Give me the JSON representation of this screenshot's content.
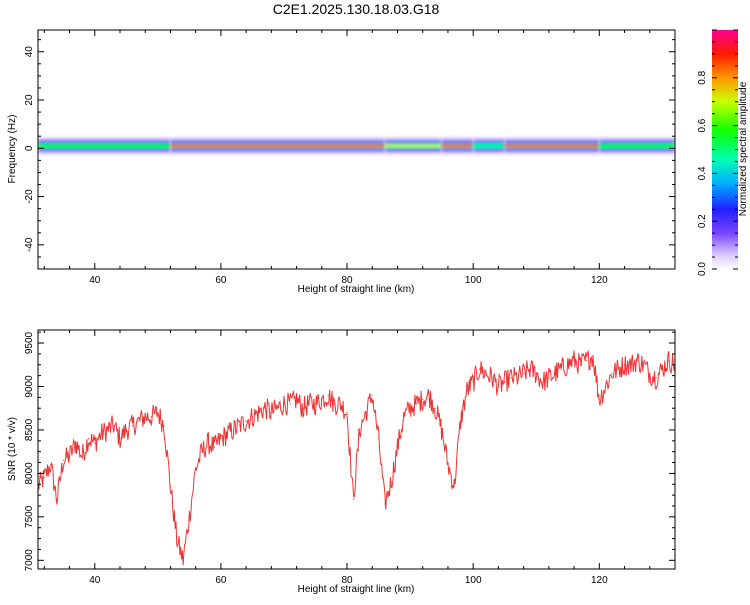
{
  "title": "C2E1.2025.130.18.03.G18",
  "chart_data": [
    {
      "type": "heatmap",
      "xlabel": "Height of straight line (km)",
      "ylabel": "Frequency (Hz)",
      "xlim": [
        31,
        132
      ],
      "ylim": [
        -50,
        49
      ],
      "xticks": [
        "40",
        "60",
        "80",
        "100",
        "120"
      ],
      "yticks": [
        "-40",
        "-20",
        "0",
        "20",
        "40"
      ],
      "colorbar": {
        "label": "Normalized spectral amplitude",
        "range": [
          0,
          1
        ],
        "ticks": [
          "0.0",
          "0.2",
          "0.4",
          "0.6",
          "0.8"
        ]
      },
      "band": {
        "center_hz": 1,
        "segments": [
          {
            "x": [
              31,
              52
            ],
            "amplitude": 0.55
          },
          {
            "x": [
              52,
              86
            ],
            "amplitude": 0.85
          },
          {
            "x": [
              86,
              95
            ],
            "amplitude": 0.6
          },
          {
            "x": [
              95,
              100
            ],
            "amplitude": 0.85
          },
          {
            "x": [
              100,
              105
            ],
            "amplitude": 0.4
          },
          {
            "x": [
              105,
              120
            ],
            "amplitude": 0.85
          },
          {
            "x": [
              120,
              132
            ],
            "amplitude": 0.55
          }
        ]
      }
    },
    {
      "type": "line",
      "xlabel": "Height of straight line (km)",
      "ylabel": "SNR (10 * v/v)",
      "xlim": [
        31,
        132
      ],
      "ylim": [
        6900,
        9650
      ],
      "xticks": [
        "40",
        "60",
        "80",
        "100",
        "120"
      ],
      "yticks": [
        "7000",
        "7500",
        "8000",
        "8500",
        "9000",
        "9500"
      ],
      "series": [
        {
          "color": "#ee3333",
          "x": [
            31,
            32,
            33,
            34,
            35,
            36,
            37,
            38,
            39,
            40,
            41,
            42,
            43,
            44,
            45,
            46,
            47,
            48,
            49,
            50,
            51,
            52,
            53,
            54,
            55,
            56,
            57,
            58,
            59,
            60,
            61,
            62,
            63,
            64,
            65,
            66,
            67,
            68,
            69,
            70,
            71,
            72,
            73,
            74,
            75,
            76,
            77,
            78,
            79,
            80,
            81,
            82,
            83,
            84,
            85,
            86,
            87,
            88,
            89,
            90,
            91,
            92,
            93,
            94,
            95,
            96,
            97,
            98,
            99,
            100,
            101,
            102,
            103,
            104,
            105,
            106,
            107,
            108,
            109,
            110,
            111,
            112,
            113,
            114,
            115,
            116,
            117,
            118,
            119,
            120,
            121,
            122,
            123,
            124,
            125,
            126,
            127,
            128,
            129,
            130,
            131,
            132
          ],
          "y": [
            7850,
            7950,
            8100,
            7700,
            8150,
            8200,
            8350,
            8200,
            8400,
            8350,
            8450,
            8500,
            8550,
            8400,
            8500,
            8550,
            8600,
            8650,
            8650,
            8700,
            8550,
            7850,
            7250,
            7000,
            7500,
            8050,
            8250,
            8350,
            8300,
            8400,
            8450,
            8500,
            8550,
            8600,
            8650,
            8700,
            8750,
            8700,
            8750,
            8800,
            8800,
            8850,
            8750,
            8800,
            8800,
            8850,
            8900,
            8800,
            8800,
            8700,
            7700,
            8500,
            8700,
            8900,
            8400,
            7650,
            7900,
            8300,
            8650,
            8750,
            8800,
            8850,
            8900,
            8750,
            8500,
            8100,
            7850,
            8600,
            8950,
            9050,
            9200,
            9150,
            9100,
            9000,
            9050,
            9100,
            9100,
            9150,
            9200,
            9150,
            9050,
            9100,
            9150,
            9200,
            9250,
            9300,
            9250,
            9300,
            9350,
            8850,
            9000,
            9150,
            9200,
            9250,
            9250,
            9300,
            9250,
            9150,
            9100,
            9200,
            9300,
            9250
          ]
        }
      ]
    }
  ]
}
